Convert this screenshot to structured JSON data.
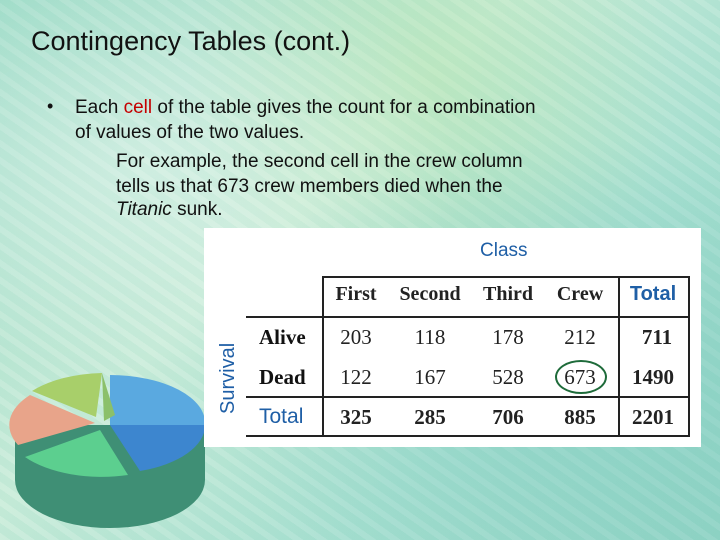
{
  "title": "Contingency Tables (cont.)",
  "bullet": {
    "dot": "•",
    "line1_pre": "Each ",
    "line1_highlight": "cell",
    "line1_post": " of the table gives the count for a combination",
    "line2": "of values of the two values.",
    "line3": "For example, the second cell in the crew column",
    "line4": "tells us that 673 crew members died when the",
    "line5_italic": "Titanic",
    "line5_post": " sunk."
  },
  "table": {
    "class_label": "Class",
    "survival_label": "Survival",
    "columns": [
      "First",
      "Second",
      "Third",
      "Crew"
    ],
    "total_col_label": "Total",
    "rows": [
      {
        "label": "Alive",
        "values": [
          "203",
          "118",
          "178",
          "212"
        ],
        "total": "711"
      },
      {
        "label": "Dead",
        "values": [
          "122",
          "167",
          "528",
          "673"
        ],
        "total": "1490"
      }
    ],
    "totals_row": {
      "label": "Total",
      "values": [
        "325",
        "285",
        "706",
        "885"
      ],
      "total": "2201"
    },
    "highlighted_cell": "673"
  },
  "colors": {
    "accent_blue": "#1f5fa6",
    "highlight_red": "#c40000",
    "circle_green": "#1e6b3a"
  }
}
